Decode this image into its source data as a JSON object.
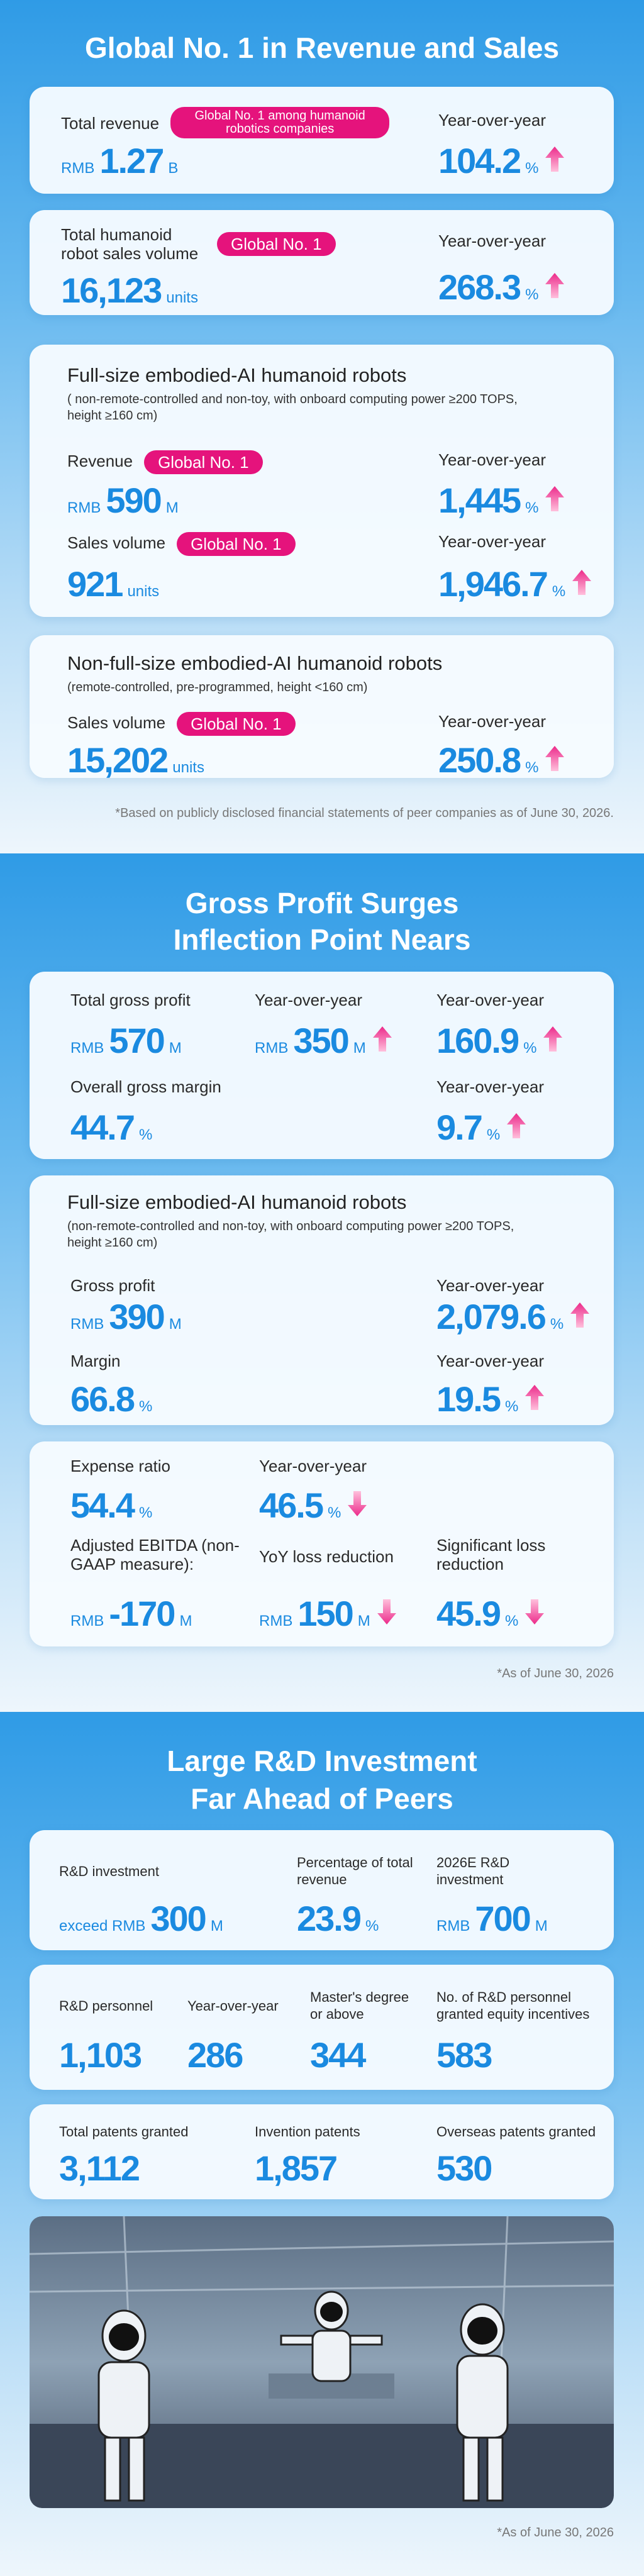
{
  "sections": [
    {
      "title_lines": [
        "Global No. 1 in Revenue and Sales"
      ],
      "cards": [
        {
          "items": [
            {
              "label": "Total revenue",
              "badge": "Global No. 1 among humanoid robotics companies",
              "prefix": "RMB",
              "value": "1.27",
              "unit": "B"
            },
            {
              "label": "Year-over-year",
              "value": "104.2",
              "unit": "%"
            }
          ]
        },
        {
          "items": [
            {
              "label": "Total humanoid robot sales volume",
              "badge": "Global No. 1",
              "value": "16,123",
              "unit": "units"
            },
            {
              "label": "Year-over-year",
              "value": "268.3",
              "unit": "%"
            }
          ]
        },
        {
          "title": "Full-size embodied-AI humanoid robots",
          "subtitle": "( non-remote-controlled and non-toy, with onboard computing power ≥200 TOPS, height ≥160 cm)",
          "items": [
            {
              "label": "Revenue",
              "badge": "Global No. 1",
              "prefix": "RMB",
              "value": "590",
              "unit": "M"
            },
            {
              "label": "Year-over-year",
              "value": "1,445",
              "unit": "%"
            },
            {
              "label": "Sales volume",
              "badge": "Global No. 1",
              "value": "921",
              "unit": "units"
            },
            {
              "label": "Year-over-year",
              "value": "1,946.7",
              "unit": "%"
            }
          ]
        },
        {
          "title": "Non-full-size embodied-AI humanoid robots",
          "subtitle": "(remote-controlled, pre-programmed, height <160 cm)",
          "items": [
            {
              "label": "Sales volume",
              "badge": "Global No. 1",
              "value": "15,202",
              "unit": "units"
            },
            {
              "label": "Year-over-year",
              "value": "250.8",
              "unit": "%"
            }
          ]
        }
      ],
      "footnote": "*Based on publicly disclosed financial statements of peer companies as of June 30, 2026."
    },
    {
      "title_lines": [
        "Gross Profit Surges",
        "Inflection Point Nears"
      ],
      "cards": [
        {
          "items": [
            {
              "label": "Total gross profit",
              "prefix": "RMB",
              "value": "570",
              "unit": "M"
            },
            {
              "label": "Year-over-year",
              "prefix": "RMB",
              "value": "350",
              "unit": "M"
            },
            {
              "label": "Year-over-year",
              "value": "160.9",
              "unit": "%"
            },
            {
              "label": "Overall gross margin",
              "value": "44.7",
              "unit": "%"
            },
            {
              "label": "Year-over-year",
              "value": "9.7",
              "unit": "%"
            }
          ]
        },
        {
          "title": "Full-size embodied-AI humanoid robots",
          "subtitle": "(non-remote-controlled and non-toy, with onboard computing power ≥200 TOPS, height ≥160 cm)",
          "items": [
            {
              "label": "Gross profit",
              "prefix": "RMB",
              "value": "390",
              "unit": "M"
            },
            {
              "label": "Year-over-year",
              "value": "2,079.6",
              "unit": "%"
            },
            {
              "label": "Margin",
              "value": "66.8",
              "unit": "%"
            },
            {
              "label": "Year-over-year",
              "value": "19.5",
              "unit": "%"
            }
          ]
        },
        {
          "items": [
            {
              "label": "Expense ratio",
              "value": "54.4",
              "unit": "%"
            },
            {
              "label": "Year-over-year",
              "value": "46.5",
              "unit": "%"
            },
            {
              "label": "Adjusted EBITDA (non-GAAP measure):",
              "prefix": "RMB",
              "value": "-170",
              "unit": "M"
            },
            {
              "label": "YoY loss reduction",
              "prefix": "RMB",
              "value": "150",
              "unit": "M"
            },
            {
              "label": "Significant loss reduction",
              "value": "45.9",
              "unit": "%"
            }
          ]
        }
      ],
      "footnote": "*As of June 30, 2026"
    },
    {
      "title_lines": [
        "Large R&D Investment",
        "Far Ahead of Peers"
      ],
      "cards": [
        {
          "items": [
            {
              "label": "R&D investment",
              "prefix": "exceed RMB",
              "value": "300",
              "unit": "M"
            },
            {
              "label": "Percentage of total revenue",
              "value": "23.9",
              "unit": "%"
            },
            {
              "label": "2026E R&D investment",
              "prefix": "RMB",
              "value": "700",
              "unit": "M"
            }
          ]
        },
        {
          "items": [
            {
              "label": "R&D personnel",
              "value": "1,103"
            },
            {
              "label": "Year-over-year",
              "value": "286"
            },
            {
              "label": "Master's degree or above",
              "value": "344"
            },
            {
              "label": "No. of R&D personnel granted equity incentives",
              "value": "583"
            }
          ]
        },
        {
          "items": [
            {
              "label": "Total patents granted",
              "value": "3,112"
            },
            {
              "label": "Invention patents",
              "value": "1,857"
            },
            {
              "label": "Overseas patents granted",
              "value": "530"
            }
          ]
        }
      ],
      "footnote": "*As of June 30, 2026"
    }
  ]
}
